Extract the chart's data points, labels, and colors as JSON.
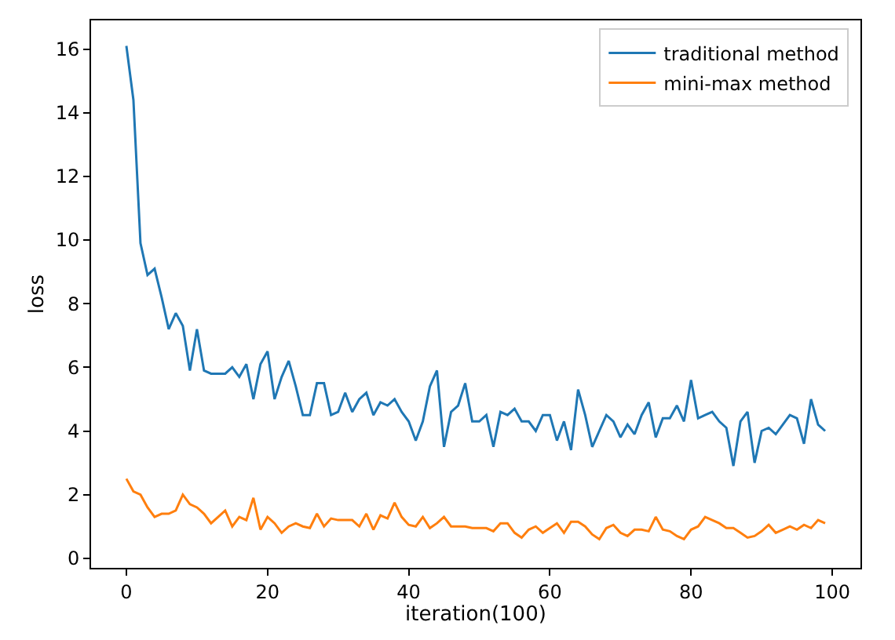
{
  "chart_data": {
    "type": "line",
    "xlabel": "iteration(100)",
    "ylabel": "loss",
    "x": [
      0,
      1,
      2,
      3,
      4,
      5,
      6,
      7,
      8,
      9,
      10,
      11,
      12,
      13,
      14,
      15,
      16,
      17,
      18,
      19,
      20,
      21,
      22,
      23,
      24,
      25,
      26,
      27,
      28,
      29,
      30,
      31,
      32,
      33,
      34,
      35,
      36,
      37,
      38,
      39,
      40,
      41,
      42,
      43,
      44,
      45,
      46,
      47,
      48,
      49,
      50,
      51,
      52,
      53,
      54,
      55,
      56,
      57,
      58,
      59,
      60,
      61,
      62,
      63,
      64,
      65,
      66,
      67,
      68,
      69,
      70,
      71,
      72,
      73,
      74,
      75,
      76,
      77,
      78,
      79,
      80,
      81,
      82,
      83,
      84,
      85,
      86,
      87,
      88,
      89,
      90,
      91,
      92,
      93,
      94,
      95,
      96,
      97,
      98,
      99
    ],
    "series": [
      {
        "name": "traditional method",
        "color": "#1f77b4",
        "values": [
          16.1,
          14.4,
          9.9,
          8.9,
          9.1,
          8.2,
          7.2,
          7.7,
          7.3,
          5.9,
          7.2,
          5.9,
          5.8,
          5.8,
          5.8,
          6.0,
          5.7,
          6.1,
          5.0,
          6.1,
          6.5,
          5.0,
          5.7,
          6.2,
          5.4,
          4.5,
          4.5,
          5.5,
          5.5,
          4.5,
          4.6,
          5.2,
          4.6,
          5.0,
          5.2,
          4.5,
          4.9,
          4.8,
          5.0,
          4.6,
          4.3,
          3.7,
          4.3,
          5.4,
          5.9,
          3.5,
          4.6,
          4.8,
          5.5,
          4.3,
          4.3,
          4.5,
          3.5,
          4.6,
          4.5,
          4.7,
          4.3,
          4.3,
          4.0,
          4.5,
          4.5,
          3.7,
          4.3,
          3.4,
          5.3,
          4.5,
          3.5,
          4.0,
          4.5,
          4.3,
          3.8,
          4.2,
          3.9,
          4.5,
          4.9,
          3.8,
          4.4,
          4.4,
          4.8,
          4.3,
          5.6,
          4.4,
          4.5,
          4.6,
          4.3,
          4.1,
          2.9,
          4.3,
          4.6,
          3.0,
          4.0,
          4.1,
          3.9,
          4.2,
          4.5,
          4.4,
          3.6,
          5.0,
          4.2,
          4.0
        ]
      },
      {
        "name": "mini-max method",
        "color": "#ff7f0e",
        "values": [
          2.5,
          2.1,
          2.0,
          1.6,
          1.3,
          1.4,
          1.4,
          1.5,
          2.0,
          1.7,
          1.6,
          1.4,
          1.1,
          1.3,
          1.5,
          1.0,
          1.3,
          1.2,
          1.9,
          0.9,
          1.3,
          1.1,
          0.8,
          1.0,
          1.1,
          1.0,
          0.95,
          1.4,
          1.0,
          1.25,
          1.2,
          1.2,
          1.2,
          1.0,
          1.4,
          0.9,
          1.35,
          1.25,
          1.75,
          1.3,
          1.05,
          1.0,
          1.3,
          0.95,
          1.1,
          1.3,
          1.0,
          1.0,
          1.0,
          0.95,
          0.95,
          0.95,
          0.85,
          1.1,
          1.1,
          0.8,
          0.65,
          0.9,
          1.0,
          0.8,
          0.95,
          1.1,
          0.8,
          1.15,
          1.15,
          1.0,
          0.75,
          0.6,
          0.95,
          1.05,
          0.8,
          0.7,
          0.9,
          0.9,
          0.85,
          1.3,
          0.9,
          0.85,
          0.7,
          0.6,
          0.9,
          1.0,
          1.3,
          1.2,
          1.1,
          0.95,
          0.95,
          0.8,
          0.65,
          0.7,
          0.85,
          1.05,
          0.8,
          0.9,
          1.0,
          0.9,
          1.05,
          0.95,
          1.2,
          1.1
        ]
      }
    ],
    "xlim": [
      -5,
      104
    ],
    "ylim": [
      -0.3,
      16.9
    ],
    "xticks": [
      0,
      20,
      40,
      60,
      80,
      100
    ],
    "yticks": [
      0,
      2,
      4,
      6,
      8,
      10,
      12,
      14,
      16
    ],
    "legend": "top right",
    "marker": "none",
    "line_style": "solid"
  }
}
